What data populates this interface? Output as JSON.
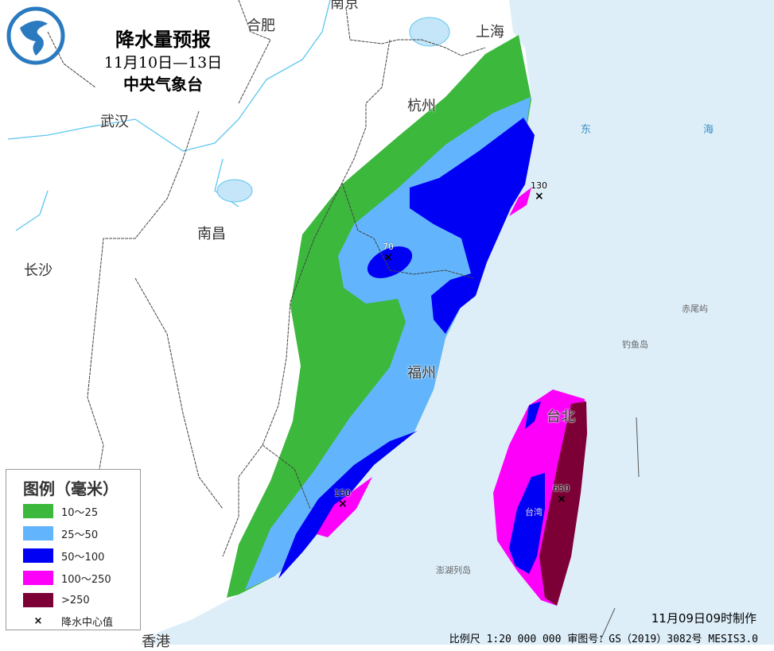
{
  "title": {
    "main": "降水量预报",
    "period": "11月10日—13日",
    "agency": "中央气象台"
  },
  "colors": {
    "sea": "#ddeef9",
    "land": "#ffffff",
    "c10_25": "#3cb83c",
    "c25_50": "#62b5fd",
    "c50_100": "#0000f4",
    "c100_250": "#fd00f9",
    "c250": "#7c0036"
  },
  "legend": {
    "title": "图例（毫米）",
    "items": [
      {
        "label": "10～25",
        "color": "#3cb83c"
      },
      {
        "label": "25～50",
        "color": "#62b5fd"
      },
      {
        "label": "50～100",
        "color": "#0000f4"
      },
      {
        "label": "100～250",
        "color": "#fd00f9"
      },
      {
        "label": ">250",
        "color": "#7c0036"
      }
    ],
    "center_marker": "降水中心值",
    "center_icon": "x-mark-icon"
  },
  "places": {
    "nanjing": "南京",
    "hefei": "合肥",
    "shanghai": "上海",
    "hangzhou": "杭州",
    "wuhan": "武汉",
    "nanchang": "南昌",
    "changsha": "长沙",
    "fuzhou": "福州",
    "taibei": "台北",
    "taiwan": "台湾",
    "donghai_1": "东",
    "donghai_2": "海",
    "chiweiyu": "赤尾屿",
    "diaoyudao": "钓鱼岛",
    "penghu": "澎湖列岛",
    "hongkong": "香港"
  },
  "centers": [
    {
      "value": "130"
    },
    {
      "value": "70"
    },
    {
      "value": "150"
    },
    {
      "value": "650"
    }
  ],
  "footer": {
    "issued": "11月09日09时制作",
    "scale": "比例尺 1:20 000 000  审图号：GS（2019）3082号 MESIS3.0"
  }
}
